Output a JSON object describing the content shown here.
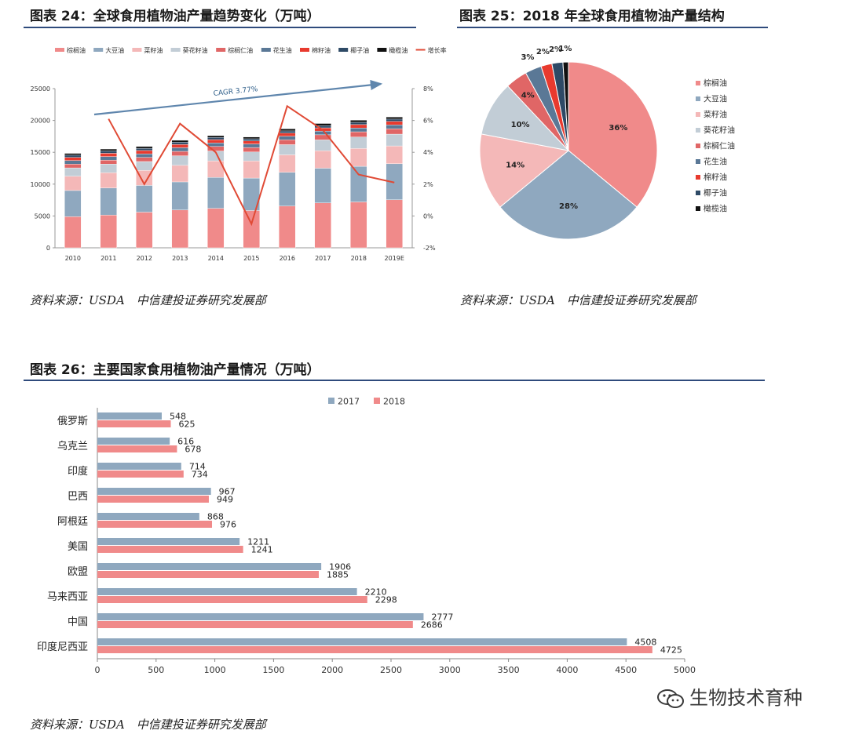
{
  "figures": {
    "fig24": {
      "title": "图表 24：全球食用植物油产量趋势变化（万吨）",
      "source": "资料来源：USDA　中信建投证券研究发展部"
    },
    "fig25": {
      "title": "图表 25：2018 年全球食用植物油产量结构",
      "source": "资料来源：USDA　中信建投证券研究发展部"
    },
    "fig26": {
      "title": "图表 26：主要国家食用植物油产量情况（万吨）",
      "source": "资料来源：USDA　中信建投证券研究发展部"
    }
  },
  "watermark": "生物技术育种",
  "colors": {
    "palm": "#f08a8a",
    "soy": "#8fa8bf",
    "rapeseed": "#f4b8b8",
    "sunflower": "#c2cdd6",
    "palmkernel": "#e06666",
    "peanut": "#5a7896",
    "cotton": "#e83a2e",
    "coconut": "#2e4a66",
    "olive": "#111111",
    "growth": "#e04a35",
    "cagr": "#5f86ad",
    "y2017": "#8fa8bf",
    "y2018": "#f08a8a"
  },
  "chart_data": [
    {
      "type": "bar",
      "stacked": true,
      "title": "全球食用植物油产量趋势变化（万吨）",
      "categories": [
        "2010",
        "2011",
        "2012",
        "2013",
        "2014",
        "2015",
        "2016",
        "2017",
        "2018",
        "2019E"
      ],
      "ylim": [
        0,
        25000
      ],
      "yticks": [
        "0",
        "5000",
        "10000",
        "15000",
        "20000",
        "25000"
      ],
      "y2lim": [
        -2,
        8
      ],
      "y2ticks": [
        "-2%",
        "0%",
        "2%",
        "4%",
        "6%",
        "8%"
      ],
      "annotation": "CAGR 3.77%",
      "series": [
        {
          "name": "棕榈油",
          "color_key": "palm",
          "values": [
            4900,
            5150,
            5600,
            5950,
            6200,
            5850,
            6550,
            7050,
            7200,
            7550
          ]
        },
        {
          "name": "大豆油",
          "color_key": "soy",
          "values": [
            4100,
            4250,
            4200,
            4400,
            4850,
            5100,
            5300,
            5450,
            5600,
            5650
          ]
        },
        {
          "name": "菜籽油",
          "color_key": "rapeseed",
          "values": [
            2250,
            2400,
            2350,
            2600,
            2600,
            2700,
            2750,
            2750,
            2800,
            2800
          ]
        },
        {
          "name": "葵花籽油",
          "color_key": "sunflower",
          "values": [
            1300,
            1350,
            1400,
            1500,
            1550,
            1400,
            1600,
            1700,
            1800,
            1850
          ]
        },
        {
          "name": "棕榈仁油",
          "color_key": "palmkernel",
          "values": [
            600,
            620,
            650,
            700,
            720,
            700,
            760,
            800,
            820,
            850
          ]
        },
        {
          "name": "花生油",
          "color_key": "peanut",
          "values": [
            550,
            560,
            560,
            570,
            560,
            560,
            570,
            580,
            600,
            610
          ]
        },
        {
          "name": "棉籽油",
          "color_key": "cotton",
          "values": [
            500,
            520,
            520,
            520,
            510,
            480,
            490,
            510,
            530,
            540
          ]
        },
        {
          "name": "椰子油",
          "color_key": "coconut",
          "values": [
            350,
            360,
            350,
            350,
            340,
            330,
            340,
            350,
            360,
            360
          ]
        },
        {
          "name": "橄榄油",
          "color_key": "olive",
          "values": [
            280,
            300,
            280,
            290,
            280,
            280,
            320,
            330,
            330,
            330
          ]
        }
      ],
      "line_series": {
        "name": "增长率",
        "color_key": "growth",
        "axis": "right",
        "values": [
          null,
          6.1,
          2.0,
          5.8,
          4.0,
          -0.5,
          6.9,
          5.4,
          2.6,
          2.1
        ]
      }
    },
    {
      "type": "pie",
      "title": "2018 年全球食用植物油产量结构",
      "labels": [
        "棕榈油",
        "大豆油",
        "菜籽油",
        "葵花籽油",
        "棕榈仁油",
        "花生油",
        "棉籽油",
        "椰子油",
        "橄榄油"
      ],
      "values": [
        36,
        28,
        14,
        10,
        4,
        3,
        2,
        2,
        1
      ],
      "value_labels": [
        "36%",
        "28%",
        "14%",
        "10%",
        "4%",
        "3%",
        "2%",
        "2%",
        "1%"
      ],
      "color_keys": [
        "palm",
        "soy",
        "rapeseed",
        "sunflower",
        "palmkernel",
        "peanut",
        "cotton",
        "coconut",
        "olive"
      ],
      "legend": "right"
    },
    {
      "type": "bar",
      "orientation": "horizontal",
      "title": "主要国家食用植物油产量情况（万吨）",
      "categories": [
        "俄罗斯",
        "乌克兰",
        "印度",
        "巴西",
        "阿根廷",
        "美国",
        "欧盟",
        "马来西亚",
        "中国",
        "印度尼西亚"
      ],
      "xlim": [
        0,
        5000
      ],
      "xticks": [
        "0",
        "500",
        "1000",
        "1500",
        "2000",
        "2500",
        "3000",
        "3500",
        "4000",
        "4500",
        "5000"
      ],
      "series": [
        {
          "name": "2017",
          "color_key": "y2017",
          "values": [
            548,
            616,
            714,
            967,
            868,
            1211,
            1906,
            2210,
            2777,
            4508
          ],
          "labels": [
            "548",
            "616",
            "714",
            "967",
            "868",
            "1211",
            "1906",
            "2210",
            "2777",
            "4508"
          ]
        },
        {
          "name": "2018",
          "color_key": "y2018",
          "values": [
            625,
            678,
            734,
            949,
            976,
            1241,
            1885,
            2298,
            2686,
            4725
          ],
          "labels": [
            "625",
            "678",
            "734",
            "949",
            "976",
            "1241",
            "1885",
            "2298",
            "2686",
            "4725"
          ]
        }
      ],
      "legend": "top"
    }
  ]
}
